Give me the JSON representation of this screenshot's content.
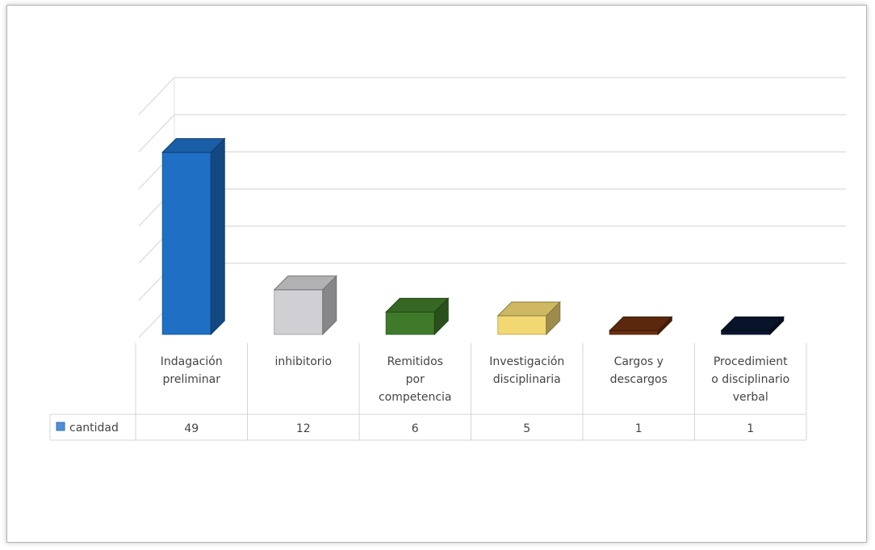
{
  "chart_data": {
    "type": "bar",
    "style": "3d-column-with-data-table",
    "categories": [
      [
        "Indagación",
        "preliminar"
      ],
      [
        "inhibitorio"
      ],
      [
        "Remitidos",
        "por",
        "competencia"
      ],
      [
        "Investigación",
        "disciplinaria"
      ],
      [
        "Cargos y",
        "descargos"
      ],
      [
        "Procedimient",
        "o disciplinario",
        "verbal"
      ]
    ],
    "series": [
      {
        "name": "cantidad",
        "values": [
          49,
          12,
          6,
          5,
          1,
          1
        ],
        "colors": [
          "#1f6fc5",
          "#d0d0d4",
          "#3f7a2a",
          "#f2d873",
          "#6b2f0f",
          "#0a1630"
        ]
      }
    ],
    "ylim": [
      0,
      60
    ],
    "grid": true,
    "legend": "data-table-left"
  }
}
